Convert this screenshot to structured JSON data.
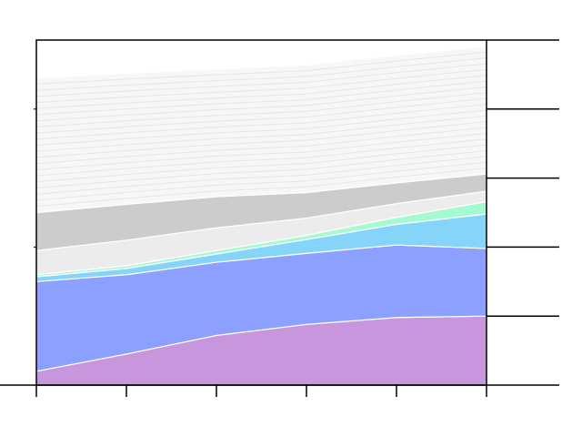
{
  "chart_data": {
    "type": "area",
    "stacked": true,
    "title": "",
    "xlabel": "",
    "ylabel": "",
    "x": [
      0,
      1,
      2,
      3,
      4,
      5
    ],
    "xlim": [
      0,
      5
    ],
    "ylim": [
      0,
      5
    ],
    "grid": false,
    "legend": "none",
    "series": [
      {
        "values": [
          0.2,
          0.45,
          0.72,
          0.88,
          0.98,
          1.0
        ],
        "color": "#c796dc"
      },
      {
        "values": [
          1.3,
          1.15,
          1.06,
          1.03,
          1.05,
          0.98
        ],
        "color": "#8ba0ff"
      },
      {
        "values": [
          0.07,
          0.09,
          0.12,
          0.2,
          0.3,
          0.5
        ],
        "color": "#87d4fb"
      },
      {
        "values": [
          0.03,
          0.04,
          0.05,
          0.06,
          0.1,
          0.18
        ],
        "color": "#a6fad2"
      },
      {
        "values": [
          0.35,
          0.37,
          0.33,
          0.25,
          0.2,
          0.15
        ],
        "color": "#ececec"
      },
      {
        "values": [
          0.55,
          0.52,
          0.45,
          0.37,
          0.3,
          0.25
        ],
        "color": "#cccccc"
      },
      {
        "values": [
          1.95,
          1.9,
          1.85,
          1.85,
          1.85,
          1.85
        ],
        "color": "#f7f7f7"
      }
    ]
  }
}
